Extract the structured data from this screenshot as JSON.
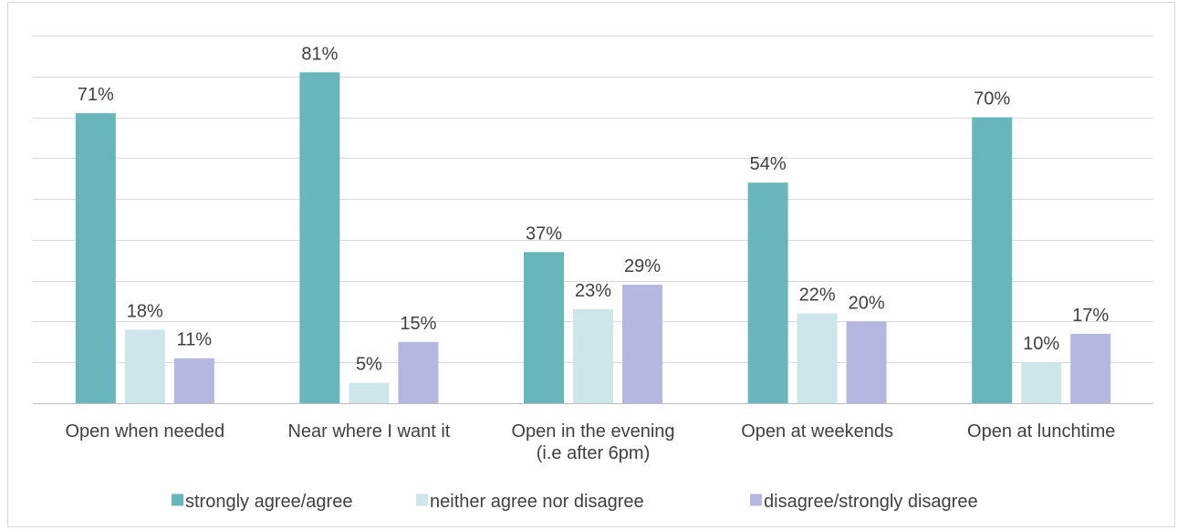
{
  "chart_data": {
    "type": "bar",
    "title": "",
    "categories": [
      [
        "Open when needed"
      ],
      [
        "Near where I want it"
      ],
      [
        "Open in the evening",
        "(i.e after 6pm)"
      ],
      [
        "Open at weekends"
      ],
      [
        "Open at lunchtime"
      ]
    ],
    "series": [
      {
        "name": "strongly agree/agree",
        "color": "#66b6bb",
        "values": [
          71,
          81,
          37,
          54,
          70
        ],
        "labels": [
          "71%",
          "81%",
          "37%",
          "54%",
          "70%"
        ]
      },
      {
        "name": "neither agree nor disagree",
        "color": "#cde6e9",
        "values": [
          18,
          5,
          23,
          22,
          10
        ],
        "labels": [
          "18%",
          "5%",
          "23%",
          "22%",
          "10%"
        ]
      },
      {
        "name": "disagree/strongly disagree",
        "color": "#b4b8e0",
        "values": [
          11,
          15,
          29,
          20,
          17
        ],
        "labels": [
          "11%",
          "15%",
          "29%",
          "20%",
          "17%"
        ]
      }
    ],
    "ylim": [
      0,
      90
    ],
    "gridlines": true,
    "legend_position": "bottom",
    "xlabel": "",
    "ylabel": ""
  }
}
